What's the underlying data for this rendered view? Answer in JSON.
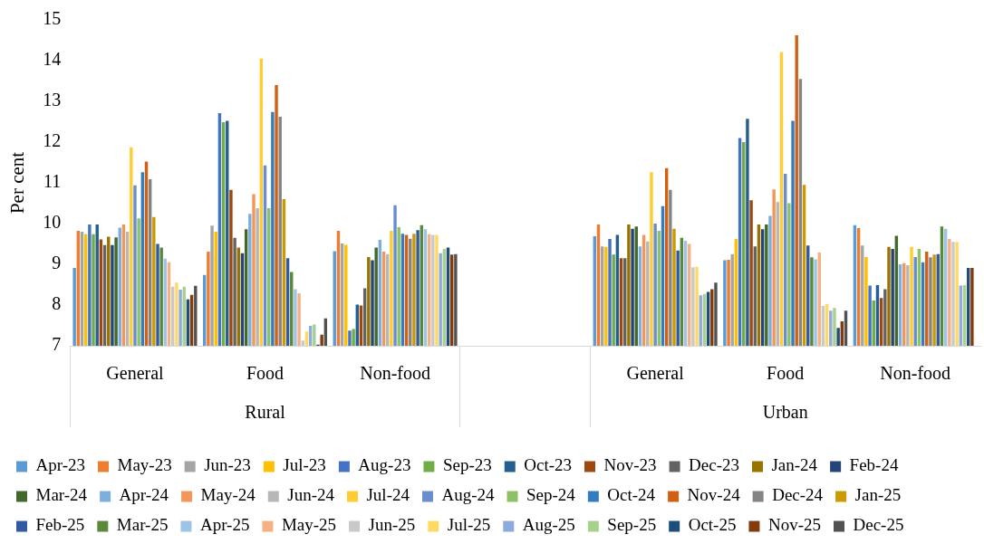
{
  "chart_data": {
    "type": "bar",
    "ylabel": "Per cent",
    "categories": [
      "General",
      "Food",
      "Non-food",
      null,
      "General",
      "Food",
      "Non-food"
    ],
    "annotations": [
      "Rural",
      "Urban"
    ],
    "ylim": [
      7,
      15
    ],
    "yticks": [
      7,
      8,
      9,
      10,
      11,
      12,
      13,
      14,
      15
    ],
    "grid": false,
    "legend": "bottom",
    "series": [
      {
        "name": "Apr-23",
        "color": "#5b9bd5",
        "values": [
          8.91,
          8.74,
          9.32,
          null,
          9.69,
          9.1,
          9.96
        ]
      },
      {
        "name": "May-23",
        "color": "#ed7d31",
        "values": [
          9.82,
          9.31,
          9.82,
          null,
          9.98,
          9.11,
          9.89
        ]
      },
      {
        "name": "Jun-23",
        "color": "#a5a5a5",
        "values": [
          9.8,
          9.95,
          9.51,
          null,
          9.44,
          9.25,
          9.46
        ]
      },
      {
        "name": "Jul-23",
        "color": "#ffc000",
        "values": [
          9.74,
          9.8,
          9.48,
          null,
          9.43,
          9.62,
          9.18
        ]
      },
      {
        "name": "Aug-23",
        "color": "#4472c4",
        "values": [
          9.98,
          12.71,
          7.37,
          null,
          9.62,
          12.1,
          8.48
        ]
      },
      {
        "name": "Sep-23",
        "color": "#70ad47",
        "values": [
          9.74,
          12.49,
          7.41,
          null,
          9.24,
          12.0,
          8.11
        ]
      },
      {
        "name": "Oct-23",
        "color": "#255e91",
        "values": [
          9.98,
          12.52,
          8.01,
          null,
          9.72,
          12.57,
          8.49
        ]
      },
      {
        "name": "Nov-23",
        "color": "#9e480e",
        "values": [
          9.61,
          10.83,
          7.99,
          null,
          9.15,
          10.57,
          8.17
        ]
      },
      {
        "name": "Dec-23",
        "color": "#636363",
        "values": [
          9.47,
          9.65,
          8.41,
          null,
          9.15,
          9.44,
          8.39
        ]
      },
      {
        "name": "Jan-24",
        "color": "#997300",
        "values": [
          9.68,
          9.41,
          9.18,
          null,
          9.98,
          9.98,
          9.43
        ]
      },
      {
        "name": "Feb-24",
        "color": "#264478",
        "values": [
          9.47,
          9.27,
          9.1,
          null,
          9.87,
          9.86,
          9.38
        ]
      },
      {
        "name": "Mar-24",
        "color": "#43682b",
        "values": [
          9.66,
          9.86,
          9.41,
          null,
          9.93,
          9.98,
          9.7
        ]
      },
      {
        "name": "Apr-24",
        "color": "#7cafdd",
        "values": [
          9.9,
          10.24,
          9.6,
          null,
          9.44,
          10.19,
          9.0
        ]
      },
      {
        "name": "May-24",
        "color": "#f1975a",
        "values": [
          9.98,
          10.72,
          9.31,
          null,
          9.72,
          10.84,
          9.03
        ]
      },
      {
        "name": "Jun-24",
        "color": "#b7b7b7",
        "values": [
          9.8,
          10.38,
          9.25,
          null,
          9.56,
          10.53,
          8.98
        ]
      },
      {
        "name": "Jul-24",
        "color": "#ffcd33",
        "values": [
          11.87,
          14.05,
          9.82,
          null,
          11.26,
          14.21,
          9.43
        ]
      },
      {
        "name": "Aug-24",
        "color": "#698ed0",
        "values": [
          10.94,
          11.43,
          10.45,
          null,
          10.0,
          11.22,
          9.18
        ]
      },
      {
        "name": "Sep-24",
        "color": "#8cc168",
        "values": [
          10.13,
          10.38,
          9.91,
          null,
          9.82,
          10.5,
          9.38
        ]
      },
      {
        "name": "Oct-24",
        "color": "#327dc2",
        "values": [
          11.26,
          12.74,
          9.75,
          null,
          10.43,
          12.52,
          9.05
        ]
      },
      {
        "name": "Nov-24",
        "color": "#d26012",
        "values": [
          11.52,
          13.4,
          9.72,
          null,
          11.36,
          14.62,
          9.31
        ]
      },
      {
        "name": "Dec-24",
        "color": "#848484",
        "values": [
          11.09,
          12.62,
          9.63,
          null,
          10.83,
          13.55,
          9.17
        ]
      },
      {
        "name": "Jan-25",
        "color": "#cc9a00",
        "values": [
          10.16,
          10.6,
          9.75,
          null,
          9.87,
          10.95,
          9.24
        ]
      },
      {
        "name": "Feb-25",
        "color": "#335aa1",
        "values": [
          9.5,
          9.15,
          9.84,
          null,
          9.34,
          9.46,
          9.25
        ]
      },
      {
        "name": "Mar-25",
        "color": "#5a8a39",
        "values": [
          9.41,
          8.81,
          9.96,
          null,
          9.65,
          9.17,
          9.93
        ]
      },
      {
        "name": "Apr-25",
        "color": "#9dc3e6",
        "values": [
          9.14,
          8.39,
          9.86,
          null,
          9.58,
          9.12,
          9.87
        ]
      },
      {
        "name": "May-25",
        "color": "#f4b183",
        "values": [
          9.05,
          8.29,
          9.74,
          null,
          9.5,
          9.29,
          9.62
        ]
      },
      {
        "name": "Jun-25",
        "color": "#c9c9c9",
        "values": [
          8.45,
          7.13,
          9.72,
          null,
          8.93,
          7.98,
          9.55
        ]
      },
      {
        "name": "Jul-25",
        "color": "#ffd966",
        "values": [
          8.55,
          7.35,
          9.72,
          null,
          8.94,
          8.03,
          9.55
        ]
      },
      {
        "name": "Aug-25",
        "color": "#8faadc",
        "values": [
          8.38,
          7.49,
          9.27,
          null,
          8.24,
          7.86,
          8.48
        ]
      },
      {
        "name": "Sep-25",
        "color": "#a9d18e",
        "values": [
          8.45,
          7.52,
          9.38,
          null,
          8.27,
          7.93,
          8.49
        ]
      },
      {
        "name": "Oct-25",
        "color": "#1f4e79",
        "values": [
          8.14,
          7.03,
          9.41,
          null,
          8.32,
          7.44,
          8.91
        ]
      },
      {
        "name": "Nov-25",
        "color": "#843c0c",
        "values": [
          8.25,
          7.27,
          9.24,
          null,
          8.39,
          7.6,
          8.91
        ]
      },
      {
        "name": "Dec-25",
        "color": "#525252",
        "values": [
          8.47,
          7.67,
          9.25,
          null,
          8.55,
          7.86,
          null
        ]
      }
    ]
  }
}
